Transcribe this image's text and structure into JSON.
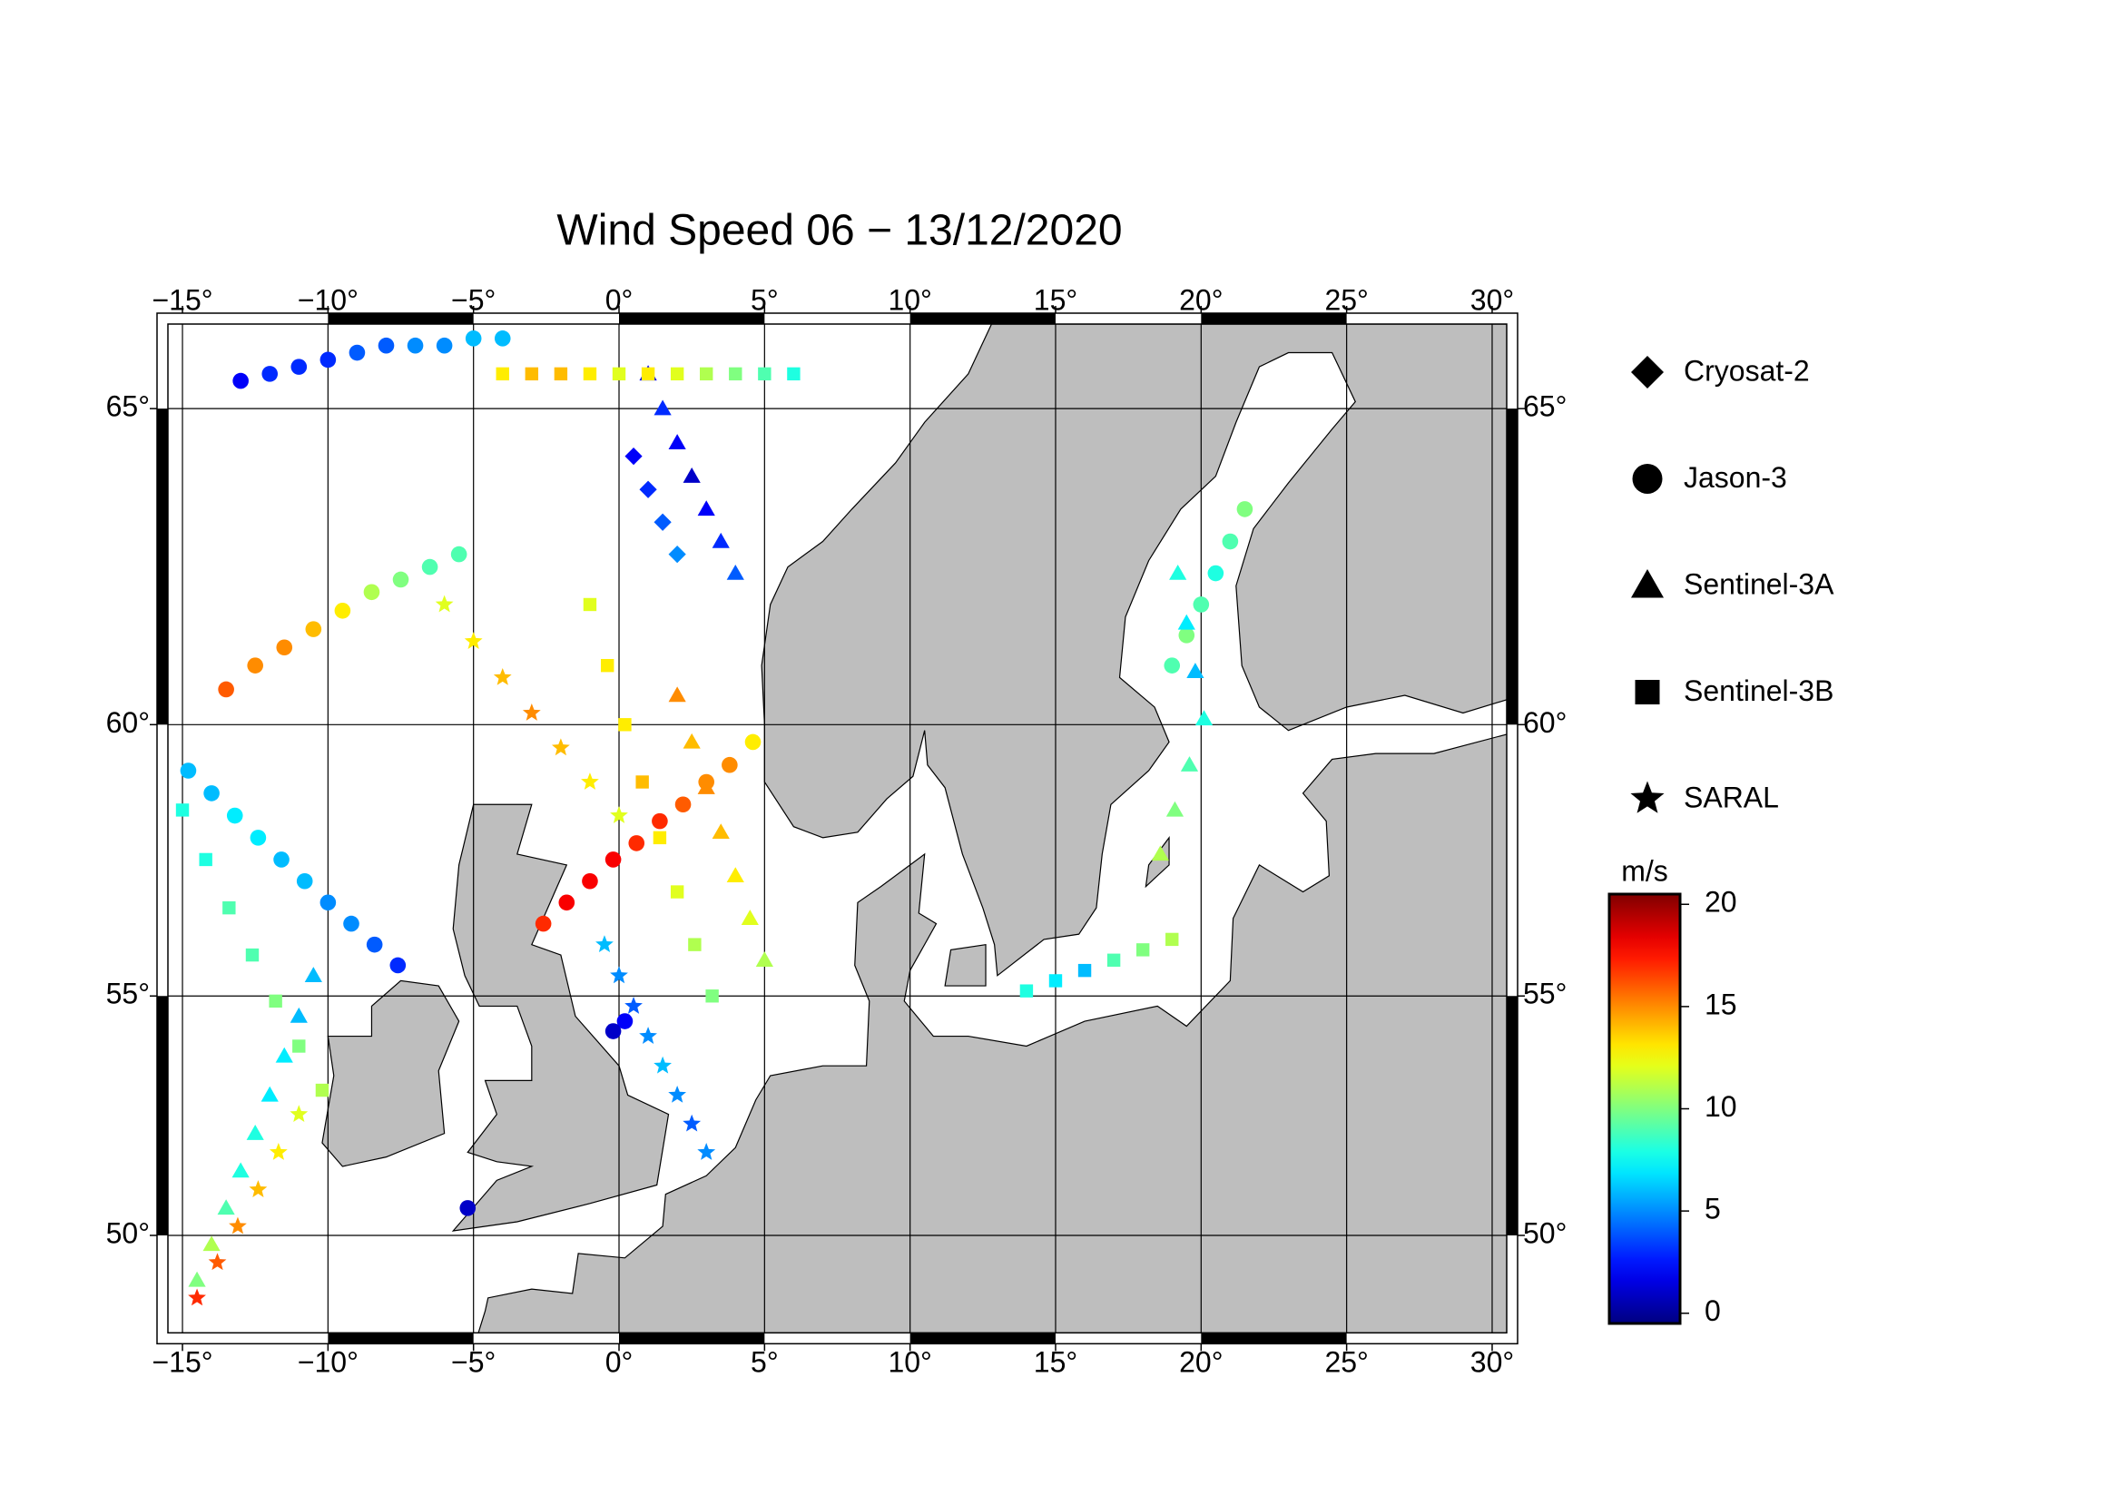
{
  "chart_data": {
    "type": "map",
    "title": "Wind Speed 06 − 13/12/2020",
    "xlim": [
      -15.5,
      30.5
    ],
    "ylim": [
      47.8,
      66.2
    ],
    "xticks": [
      {
        "value": -15,
        "label": "−15°"
      },
      {
        "value": -10,
        "label": "−10°"
      },
      {
        "value": -5,
        "label": "−5°"
      },
      {
        "value": 0,
        "label": "0°"
      },
      {
        "value": 5,
        "label": "5°"
      },
      {
        "value": 10,
        "label": "10°"
      },
      {
        "value": 15,
        "label": "15°"
      },
      {
        "value": 20,
        "label": "20°"
      },
      {
        "value": 25,
        "label": "25°"
      },
      {
        "value": 30,
        "label": "30°"
      }
    ],
    "yticks": [
      {
        "value": 50,
        "label": "50°"
      },
      {
        "value": 55,
        "label": "55°"
      },
      {
        "value": 60,
        "label": "60°"
      },
      {
        "value": 65,
        "label": "65°"
      }
    ],
    "grid": true,
    "series": [
      {
        "name": "Cryosat-2",
        "marker": "diamond",
        "lon": [
          0.5,
          1,
          1.5,
          2
        ],
        "lat": [
          64.3,
          63.8,
          63.3,
          62.8
        ],
        "values": [
          2,
          3,
          4,
          5
        ]
      },
      {
        "name": "Jason-3",
        "marker": "circle",
        "lon": [
          -7.6,
          -8.4,
          -9.2,
          -10,
          -10.8,
          -11.6,
          -12.4,
          -13.2,
          -14,
          -14.8,
          -2.6,
          -1.8,
          -1,
          -0.2,
          0.6,
          1.4,
          2.2,
          3,
          3.8,
          4.6,
          -13.5,
          -12.5,
          -11.5,
          -10.5,
          -9.5,
          -8.5,
          -7.5,
          -6.5,
          -5.5,
          -13,
          -12,
          -11,
          -10,
          -9,
          -8,
          -7,
          -6,
          -5,
          -4,
          19,
          19.5,
          20,
          20.5,
          21,
          21.5,
          0.2,
          -0.2,
          -5.2
        ],
        "lat": [
          55.6,
          56,
          56.4,
          56.8,
          57.2,
          57.6,
          58,
          58.4,
          58.8,
          59.2,
          56.4,
          56.8,
          57.2,
          57.6,
          57.9,
          58.3,
          58.6,
          59,
          59.3,
          59.7,
          60.6,
          61,
          61.3,
          61.6,
          61.9,
          62.2,
          62.4,
          62.6,
          62.8,
          65.4,
          65.5,
          65.6,
          65.7,
          65.8,
          65.9,
          65.9,
          65.9,
          66,
          66,
          61,
          61.5,
          62,
          62.5,
          63,
          63.5,
          54.5,
          54.3,
          50.6
        ],
        "values": [
          3,
          4,
          5,
          5,
          6,
          6,
          7,
          7,
          6,
          6,
          17,
          18,
          18,
          18,
          17,
          17,
          16,
          15,
          15,
          13,
          16,
          15,
          15,
          14,
          13,
          11,
          10,
          9,
          9,
          2,
          3,
          3,
          3,
          4,
          4,
          5,
          5,
          6,
          6,
          9,
          10,
          9,
          8,
          9,
          10,
          2,
          1,
          1
        ]
      },
      {
        "name": "Sentinel-3A",
        "marker": "triangle",
        "lon": [
          2,
          2.5,
          3,
          3.5,
          4,
          4.5,
          5,
          -14.5,
          -14,
          -13.5,
          -13,
          -12.5,
          -12,
          -11.5,
          -11,
          -10.5,
          19.2,
          19.5,
          19.8,
          20.1,
          19.6,
          19.1,
          18.6,
          1,
          1.5,
          2,
          2.5,
          3,
          3.5,
          4
        ],
        "lat": [
          60.5,
          59.7,
          58.9,
          58.1,
          57.3,
          56.5,
          55.7,
          49,
          49.8,
          50.6,
          51.4,
          52.2,
          53,
          53.8,
          54.6,
          55.4,
          62.5,
          61.7,
          60.9,
          60.1,
          59.3,
          58.5,
          57.7,
          65.5,
          65,
          64.5,
          64,
          63.5,
          63,
          62.5
        ],
        "values": [
          15,
          14,
          15,
          14,
          13,
          12,
          11,
          10,
          11,
          9,
          8,
          8,
          7,
          7,
          6,
          6,
          8,
          7,
          6,
          8,
          9,
          10,
          11,
          2,
          3,
          2,
          1,
          2,
          3,
          4
        ]
      },
      {
        "name": "Sentinel-3B",
        "marker": "square",
        "lon": [
          -15,
          -14.2,
          -13.4,
          -12.6,
          -11.8,
          -11,
          -10.2,
          -1,
          -0.4,
          0.2,
          0.8,
          1.4,
          2,
          2.6,
          3.2,
          -4,
          -3,
          -2,
          -1,
          0,
          1,
          2,
          3,
          4,
          5,
          6,
          14,
          15,
          16,
          17,
          18,
          19
        ],
        "lat": [
          58.5,
          57.6,
          56.7,
          55.8,
          54.9,
          54,
          53.1,
          62,
          61,
          60,
          59,
          58,
          57,
          56,
          55,
          65.5,
          65.5,
          65.5,
          65.5,
          65.5,
          65.5,
          65.5,
          65.5,
          65.5,
          65.5,
          65.5,
          55.1,
          55.3,
          55.5,
          55.7,
          55.9,
          56.1
        ],
        "values": [
          8,
          8,
          9,
          9,
          10,
          10,
          11,
          12,
          13,
          13,
          14,
          13,
          12,
          11,
          10,
          13,
          14,
          14,
          13,
          12,
          13,
          12,
          11,
          10,
          9,
          8,
          8,
          7,
          6,
          9,
          10,
          11
        ]
      },
      {
        "name": "SARAL",
        "marker": "star",
        "lon": [
          -0.5,
          0,
          0.5,
          1,
          1.5,
          2,
          2.5,
          3,
          -14.5,
          -13.8,
          -13.1,
          -12.4,
          -11.7,
          -11,
          -6,
          -5,
          -4,
          -3,
          -2,
          -1,
          0
        ],
        "lat": [
          56,
          55.4,
          54.8,
          54.2,
          53.6,
          53,
          52.4,
          51.8,
          48.6,
          49.4,
          50.2,
          51,
          51.8,
          52.6,
          62,
          61.4,
          60.8,
          60.2,
          59.6,
          59,
          58.4
        ],
        "values": [
          6,
          5,
          4,
          5,
          6,
          5,
          4,
          5,
          17,
          16,
          15,
          14,
          13,
          12,
          12,
          13,
          14,
          15,
          14,
          13,
          12
        ]
      }
    ],
    "colorbar": {
      "label": "m/s",
      "colormap": "jet",
      "clim": [
        -0.5,
        20.5
      ],
      "ticks": [
        0,
        5,
        10,
        15,
        20
      ]
    }
  }
}
